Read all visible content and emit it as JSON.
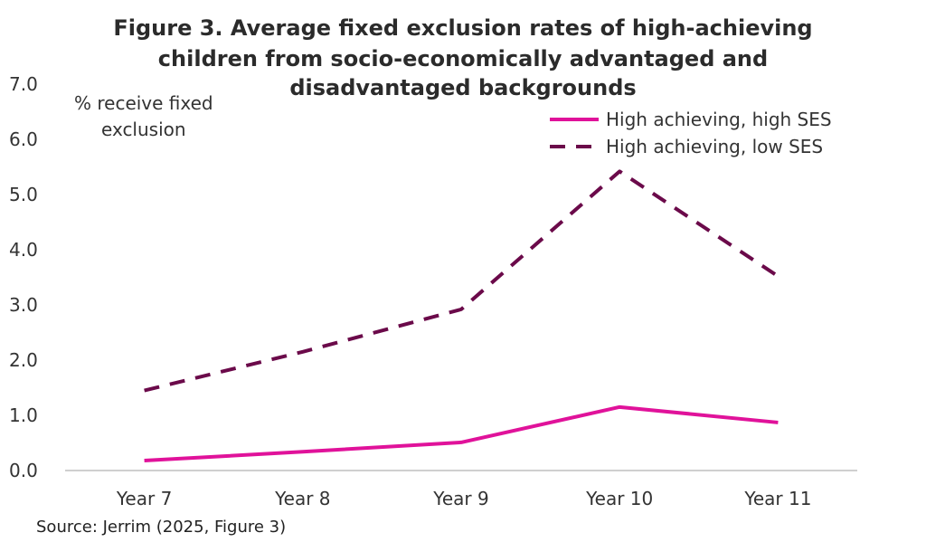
{
  "chart_data": {
    "type": "line",
    "title_lines": [
      "Figure 3. Average fixed exclusion rates of high-achieving",
      "children from socio-economically  advantaged and",
      "disadvantaged backgrounds"
    ],
    "ylabel_lines": [
      "% receive fixed",
      "exclusion"
    ],
    "xlabel": "",
    "categories": [
      "Year 7",
      "Year 8",
      "Year 9",
      "Year 10",
      "Year 11"
    ],
    "ylim": [
      0,
      7
    ],
    "yticks": [
      "0.0",
      "1.0",
      "2.0",
      "3.0",
      "4.0",
      "5.0",
      "6.0",
      "7.0"
    ],
    "grid": false,
    "legend_position": "top-right",
    "series": [
      {
        "name": "High achieving, high SES",
        "values": [
          0.18,
          0.34,
          0.51,
          1.15,
          0.87
        ],
        "color": "#e0129a",
        "style": "solid"
      },
      {
        "name": "High achieving, low SES",
        "values": [
          1.45,
          2.15,
          2.92,
          5.42,
          3.52
        ],
        "color": "#6b0a4a",
        "style": "dashed"
      }
    ]
  },
  "source": "Source: Jerrim (2025, Figure 3)"
}
